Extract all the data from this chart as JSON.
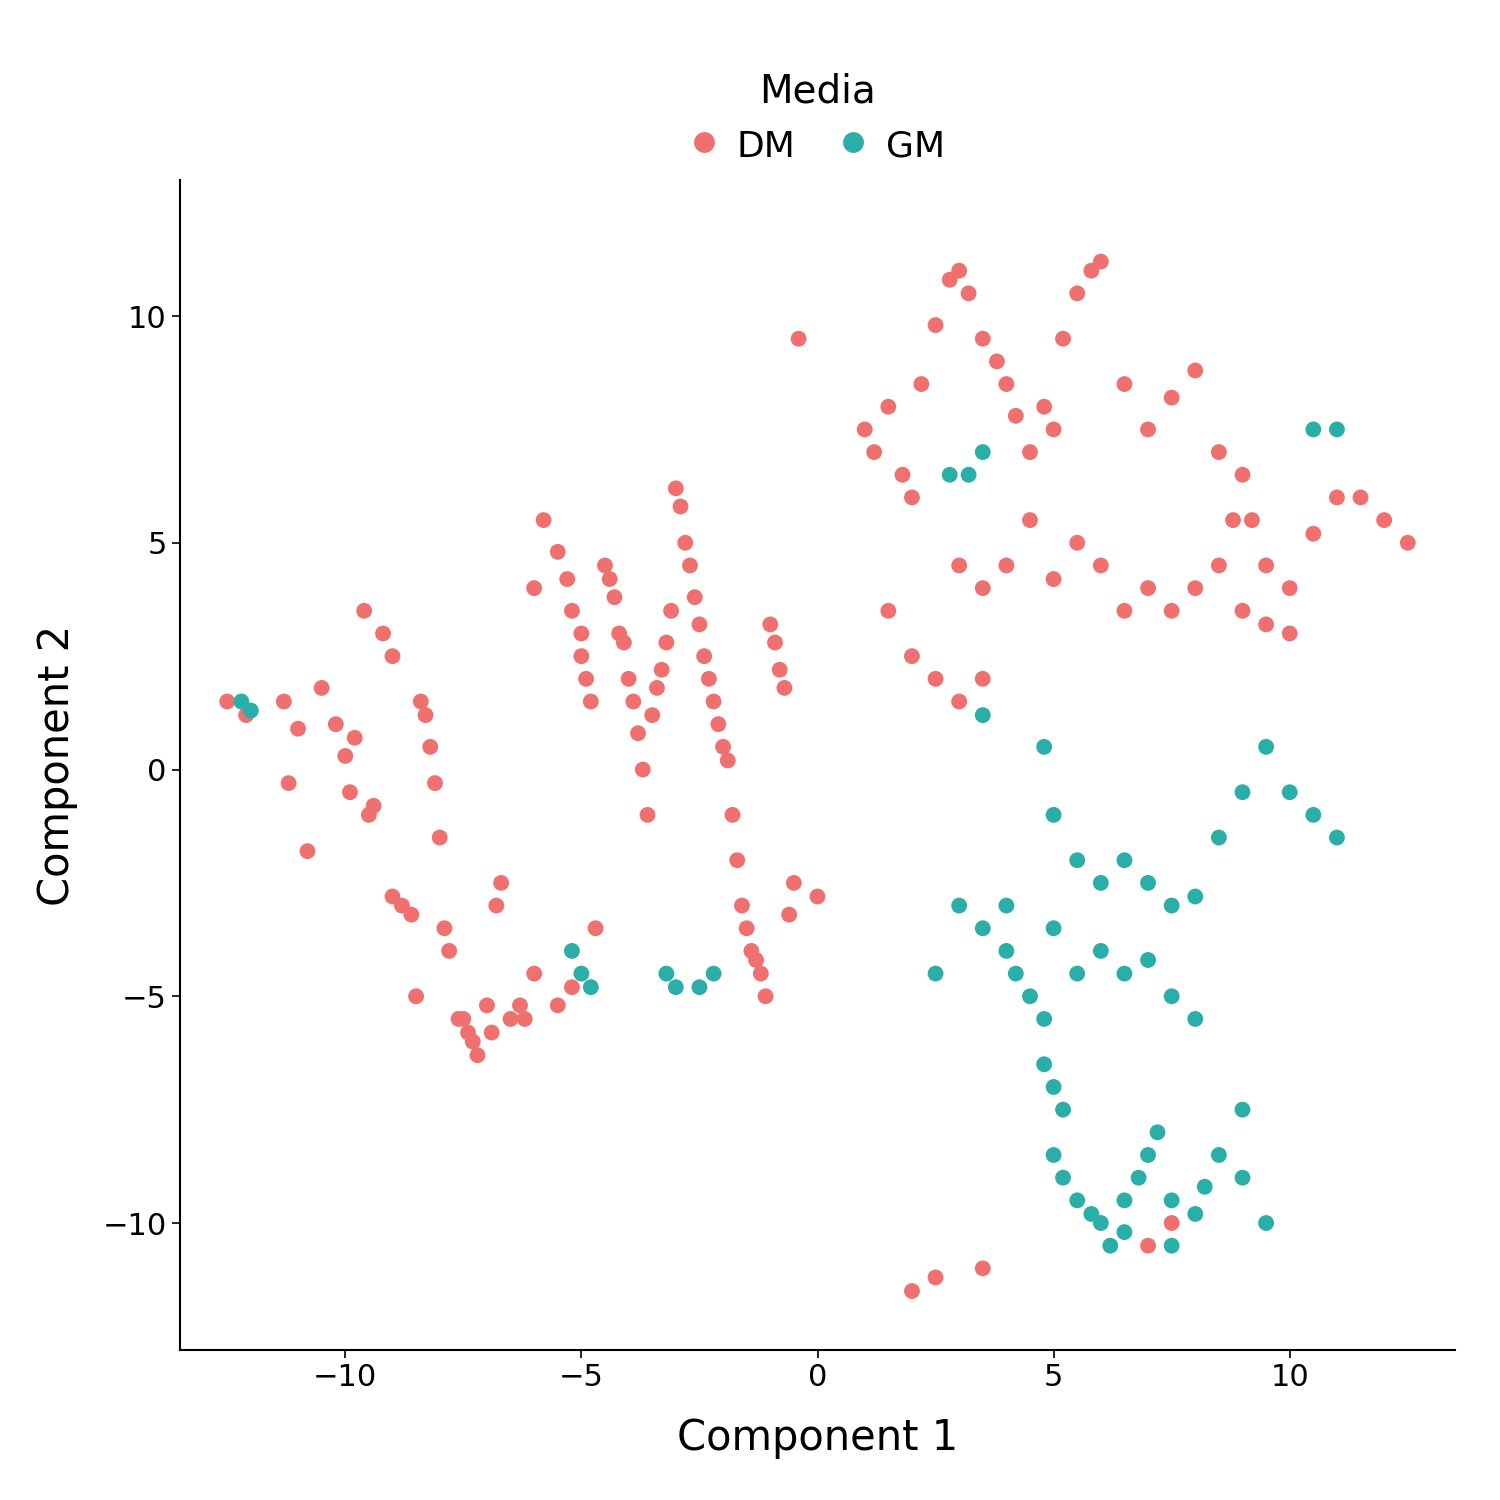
{
  "xlabel": "Component 1",
  "ylabel": "Component 2",
  "legend_title": "Media",
  "xlim": [
    -13.5,
    13.5
  ],
  "ylim": [
    -12.8,
    13.0
  ],
  "xticks": [
    -10,
    -5,
    0,
    5,
    10
  ],
  "yticks": [
    -10,
    -5,
    0,
    5,
    10
  ],
  "dm_color": "#F07070",
  "gm_color": "#29AFA8",
  "marker_size": 130,
  "dm_points": [
    [
      -12.5,
      1.5
    ],
    [
      -12.1,
      1.2
    ],
    [
      -11.3,
      1.5
    ],
    [
      -11.0,
      0.9
    ],
    [
      -11.2,
      -0.3
    ],
    [
      -10.8,
      -1.8
    ],
    [
      -10.5,
      1.8
    ],
    [
      -10.2,
      1.0
    ],
    [
      -10.0,
      0.3
    ],
    [
      -9.9,
      -0.5
    ],
    [
      -9.8,
      0.7
    ],
    [
      -9.6,
      3.5
    ],
    [
      -9.5,
      -1.0
    ],
    [
      -9.4,
      -0.8
    ],
    [
      -9.2,
      3.0
    ],
    [
      -9.0,
      2.5
    ],
    [
      -9.0,
      -2.8
    ],
    [
      -8.8,
      -3.0
    ],
    [
      -8.6,
      -3.2
    ],
    [
      -8.5,
      -5.0
    ],
    [
      -8.4,
      1.5
    ],
    [
      -8.3,
      1.2
    ],
    [
      -8.2,
      0.5
    ],
    [
      -8.1,
      -0.3
    ],
    [
      -8.0,
      -1.5
    ],
    [
      -7.9,
      -3.5
    ],
    [
      -7.8,
      -4.0
    ],
    [
      -7.6,
      -5.5
    ],
    [
      -7.5,
      -5.5
    ],
    [
      -7.4,
      -5.8
    ],
    [
      -7.3,
      -6.0
    ],
    [
      -7.2,
      -6.3
    ],
    [
      -7.0,
      -5.2
    ],
    [
      -6.9,
      -5.8
    ],
    [
      -6.8,
      -3.0
    ],
    [
      -6.7,
      -2.5
    ],
    [
      -6.5,
      -5.5
    ],
    [
      -6.3,
      -5.2
    ],
    [
      -6.2,
      -5.5
    ],
    [
      -6.0,
      -4.5
    ],
    [
      -6.0,
      4.0
    ],
    [
      -5.8,
      5.5
    ],
    [
      -5.5,
      -5.2
    ],
    [
      -5.5,
      4.8
    ],
    [
      -5.3,
      4.2
    ],
    [
      -5.2,
      3.5
    ],
    [
      -5.2,
      -4.8
    ],
    [
      -5.0,
      3.0
    ],
    [
      -5.0,
      2.5
    ],
    [
      -4.9,
      2.0
    ],
    [
      -4.8,
      1.5
    ],
    [
      -4.7,
      -3.5
    ],
    [
      -4.5,
      4.5
    ],
    [
      -4.4,
      4.2
    ],
    [
      -4.3,
      3.8
    ],
    [
      -4.2,
      3.0
    ],
    [
      -4.1,
      2.8
    ],
    [
      -4.0,
      2.0
    ],
    [
      -3.9,
      1.5
    ],
    [
      -3.8,
      0.8
    ],
    [
      -3.7,
      0.0
    ],
    [
      -3.6,
      -1.0
    ],
    [
      -3.5,
      1.2
    ],
    [
      -3.4,
      1.8
    ],
    [
      -3.3,
      2.2
    ],
    [
      -3.2,
      2.8
    ],
    [
      -3.1,
      3.5
    ],
    [
      -3.0,
      6.2
    ],
    [
      -2.9,
      5.8
    ],
    [
      -2.8,
      5.0
    ],
    [
      -2.7,
      4.5
    ],
    [
      -2.6,
      3.8
    ],
    [
      -2.5,
      3.2
    ],
    [
      -2.4,
      2.5
    ],
    [
      -2.3,
      2.0
    ],
    [
      -2.2,
      1.5
    ],
    [
      -2.1,
      1.0
    ],
    [
      -2.0,
      0.5
    ],
    [
      -1.9,
      0.2
    ],
    [
      -1.8,
      -1.0
    ],
    [
      -1.7,
      -2.0
    ],
    [
      -1.6,
      -3.0
    ],
    [
      -1.5,
      -3.5
    ],
    [
      -1.4,
      -4.0
    ],
    [
      -1.3,
      -4.2
    ],
    [
      -1.2,
      -4.5
    ],
    [
      -1.1,
      -5.0
    ],
    [
      -1.0,
      3.2
    ],
    [
      -0.9,
      2.8
    ],
    [
      -0.8,
      2.2
    ],
    [
      -0.7,
      1.8
    ],
    [
      -0.6,
      -3.2
    ],
    [
      -0.5,
      -2.5
    ],
    [
      -0.4,
      9.5
    ],
    [
      0.0,
      -2.8
    ],
    [
      1.0,
      7.5
    ],
    [
      1.2,
      7.0
    ],
    [
      1.5,
      8.0
    ],
    [
      1.8,
      6.5
    ],
    [
      2.0,
      6.0
    ],
    [
      2.2,
      8.5
    ],
    [
      2.5,
      9.8
    ],
    [
      2.8,
      10.8
    ],
    [
      3.0,
      11.0
    ],
    [
      3.2,
      10.5
    ],
    [
      3.5,
      9.5
    ],
    [
      3.8,
      9.0
    ],
    [
      4.0,
      8.5
    ],
    [
      4.2,
      7.8
    ],
    [
      4.5,
      7.0
    ],
    [
      4.8,
      8.0
    ],
    [
      5.0,
      7.5
    ],
    [
      5.2,
      9.5
    ],
    [
      5.5,
      10.5
    ],
    [
      5.8,
      11.0
    ],
    [
      6.0,
      11.2
    ],
    [
      6.5,
      8.5
    ],
    [
      7.0,
      7.5
    ],
    [
      7.5,
      8.2
    ],
    [
      8.0,
      8.8
    ],
    [
      8.5,
      7.0
    ],
    [
      8.8,
      5.5
    ],
    [
      9.0,
      6.5
    ],
    [
      9.2,
      5.5
    ],
    [
      9.5,
      4.5
    ],
    [
      10.0,
      4.0
    ],
    [
      10.5,
      5.2
    ],
    [
      11.0,
      6.0
    ],
    [
      11.5,
      6.0
    ],
    [
      12.0,
      5.5
    ],
    [
      12.5,
      5.0
    ],
    [
      3.0,
      4.5
    ],
    [
      3.5,
      4.0
    ],
    [
      4.0,
      4.5
    ],
    [
      4.5,
      5.5
    ],
    [
      5.0,
      4.2
    ],
    [
      5.5,
      5.0
    ],
    [
      6.0,
      4.5
    ],
    [
      6.5,
      3.5
    ],
    [
      7.0,
      4.0
    ],
    [
      7.5,
      3.5
    ],
    [
      8.0,
      4.0
    ],
    [
      8.5,
      4.5
    ],
    [
      9.0,
      3.5
    ],
    [
      9.5,
      3.2
    ],
    [
      10.0,
      3.0
    ],
    [
      1.5,
      3.5
    ],
    [
      2.0,
      2.5
    ],
    [
      2.5,
      2.0
    ],
    [
      3.0,
      1.5
    ],
    [
      3.5,
      2.0
    ],
    [
      2.0,
      -11.5
    ],
    [
      2.5,
      -11.2
    ],
    [
      3.5,
      -11.0
    ],
    [
      7.0,
      -10.5
    ],
    [
      7.5,
      -10.0
    ]
  ],
  "gm_points": [
    [
      -12.2,
      1.5
    ],
    [
      -12.0,
      1.3
    ],
    [
      -5.2,
      -4.0
    ],
    [
      -5.0,
      -4.5
    ],
    [
      -4.8,
      -4.8
    ],
    [
      -3.2,
      -4.5
    ],
    [
      -3.0,
      -4.8
    ],
    [
      -2.5,
      -4.8
    ],
    [
      -2.2,
      -4.5
    ],
    [
      2.5,
      -4.5
    ],
    [
      2.8,
      6.5
    ],
    [
      3.2,
      6.5
    ],
    [
      3.5,
      1.2
    ],
    [
      4.0,
      -4.0
    ],
    [
      4.2,
      -4.5
    ],
    [
      4.5,
      -5.0
    ],
    [
      4.8,
      -5.5
    ],
    [
      4.8,
      -6.5
    ],
    [
      5.0,
      -7.0
    ],
    [
      5.2,
      -7.5
    ],
    [
      5.0,
      -8.5
    ],
    [
      5.2,
      -9.0
    ],
    [
      5.5,
      -9.5
    ],
    [
      5.8,
      -9.8
    ],
    [
      6.0,
      -10.0
    ],
    [
      6.2,
      -10.5
    ],
    [
      6.5,
      -10.2
    ],
    [
      6.5,
      -9.5
    ],
    [
      6.8,
      -9.0
    ],
    [
      7.0,
      -8.5
    ],
    [
      7.2,
      -8.0
    ],
    [
      7.5,
      -9.5
    ],
    [
      7.5,
      -10.5
    ],
    [
      8.0,
      -9.8
    ],
    [
      8.2,
      -9.2
    ],
    [
      8.5,
      -8.5
    ],
    [
      9.0,
      -9.0
    ],
    [
      9.5,
      -10.0
    ],
    [
      9.0,
      -7.5
    ],
    [
      3.0,
      -3.0
    ],
    [
      3.5,
      -3.5
    ],
    [
      4.0,
      -3.0
    ],
    [
      5.0,
      -3.5
    ],
    [
      5.5,
      -4.5
    ],
    [
      6.0,
      -4.0
    ],
    [
      6.5,
      -4.5
    ],
    [
      7.0,
      -4.2
    ],
    [
      7.5,
      -5.0
    ],
    [
      8.0,
      -5.5
    ],
    [
      4.8,
      0.5
    ],
    [
      5.0,
      -1.0
    ],
    [
      5.5,
      -2.0
    ],
    [
      6.0,
      -2.5
    ],
    [
      6.5,
      -2.0
    ],
    [
      7.0,
      -2.5
    ],
    [
      7.5,
      -3.0
    ],
    [
      8.0,
      -2.8
    ],
    [
      8.5,
      -1.5
    ],
    [
      9.0,
      -0.5
    ],
    [
      9.5,
      0.5
    ],
    [
      10.0,
      -0.5
    ],
    [
      10.5,
      -1.0
    ],
    [
      11.0,
      -1.5
    ],
    [
      10.5,
      7.5
    ],
    [
      11.0,
      7.5
    ],
    [
      3.5,
      7.0
    ]
  ]
}
